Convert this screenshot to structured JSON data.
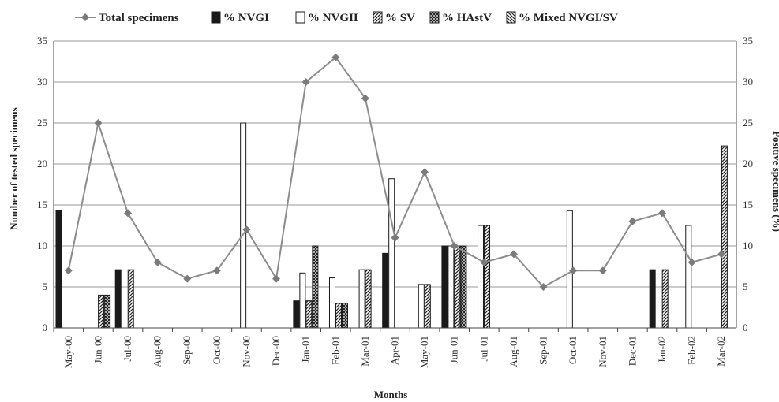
{
  "chart_data": {
    "type": "bar+line",
    "categories": [
      "May-00",
      "Jun-00",
      "Jul-00",
      "Aug-00",
      "Sep-00",
      "Oct-00",
      "Nov-00",
      "Dec-00",
      "Jan-01",
      "Feb-01",
      "Mar-01",
      "Apr-01",
      "May-01",
      "Jun-01",
      "Jul-01",
      "Aug-01",
      "Sep-01",
      "Oct-01",
      "Nov-01",
      "Dec-01",
      "Jan-02",
      "Feb-02",
      "Mar-02"
    ],
    "xlabel": "Months",
    "ylabel_left": "Number of tested specimens",
    "ylabel_right": "Positive specimens (%)",
    "ylim_left": [
      0,
      35
    ],
    "ylim_right": [
      0,
      35
    ],
    "yticks": [
      "0",
      "5",
      "10",
      "15",
      "20",
      "25",
      "30",
      "35"
    ],
    "grid": true,
    "legend_position": "top",
    "line_series": {
      "name": "Total specimens",
      "axis": "left",
      "color": "#8c8c8c",
      "values": [
        7,
        25,
        14,
        8,
        6,
        7,
        12,
        6,
        30,
        33,
        28,
        11,
        19,
        10,
        8,
        9,
        5,
        7,
        7,
        13,
        14,
        8,
        9
      ]
    },
    "bar_series": [
      {
        "name": "% NVGI",
        "pattern": "solid",
        "values": [
          14.3,
          0,
          7.1,
          0,
          0,
          0,
          0,
          0,
          3.3,
          0,
          0,
          9.1,
          0,
          10,
          0,
          0,
          0,
          0,
          0,
          0,
          7.1,
          0,
          0
        ]
      },
      {
        "name": "% NVGII",
        "pattern": "open",
        "values": [
          0,
          0,
          0,
          0,
          0,
          0,
          25,
          0,
          6.7,
          6.1,
          7.1,
          18.2,
          5.3,
          10,
          12.5,
          0,
          0,
          14.3,
          0,
          0,
          0,
          12.5,
          0
        ]
      },
      {
        "name": "% SV",
        "pattern": "diagonal",
        "values": [
          0,
          4,
          7.1,
          0,
          0,
          0,
          0,
          0,
          3.3,
          3,
          7.1,
          0,
          5.3,
          10,
          12.5,
          0,
          0,
          0,
          0,
          0,
          7.1,
          0,
          22.2
        ]
      },
      {
        "name": "% HAstV",
        "pattern": "crosshatch",
        "values": [
          0,
          4,
          0,
          0,
          0,
          0,
          0,
          0,
          10,
          3,
          0,
          0,
          0,
          10,
          0,
          0,
          0,
          0,
          0,
          0,
          0,
          0,
          0
        ]
      },
      {
        "name": "% Mixed NVGI/SV",
        "pattern": "backdiagonal",
        "values": [
          0,
          0,
          0,
          0,
          0,
          0,
          0,
          0,
          0,
          0,
          0,
          0,
          0,
          0,
          0,
          0,
          0,
          0,
          0,
          0,
          0,
          0,
          0
        ]
      }
    ]
  }
}
